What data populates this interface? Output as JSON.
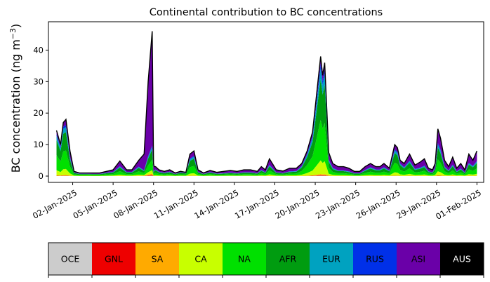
{
  "chart_data": {
    "type": "area",
    "title": "Continental contribution to BC concentrations",
    "ylabel": "BC concentration (ng m",
    "ylabel_unit_exponent": "−3",
    "ylabel_close": ")",
    "ylim": [
      -2,
      49
    ],
    "yticks": [
      0,
      10,
      20,
      30,
      40
    ],
    "xlim_days": [
      -0.8,
      31.5
    ],
    "xticks": [
      {
        "day": 1,
        "label": "02-Jan-2025"
      },
      {
        "day": 4,
        "label": "05-Jan-2025"
      },
      {
        "day": 7,
        "label": "08-Jan-2025"
      },
      {
        "day": 10,
        "label": "11-Jan-2025"
      },
      {
        "day": 13,
        "label": "14-Jan-2025"
      },
      {
        "day": 16,
        "label": "17-Jan-2025"
      },
      {
        "day": 19,
        "label": "20-Jan-2025"
      },
      {
        "day": 22,
        "label": "23-Jan-2025"
      },
      {
        "day": 25,
        "label": "26-Jan-2025"
      },
      {
        "day": 28,
        "label": "29-Jan-2025"
      },
      {
        "day": 31,
        "label": "01-Feb-2025"
      }
    ],
    "start_date": "01-Jan-2025",
    "series_order": [
      "OCE",
      "GNL",
      "SA",
      "CA",
      "NA",
      "AFR",
      "EUR",
      "RUS",
      "ASI",
      "AUS"
    ],
    "series_colors": [
      "#cccccc",
      "#ee0000",
      "#ffaa00",
      "#c8ff00",
      "#00e000",
      "#009c10",
      "#00a2c0",
      "#0030e8",
      "#6a00a8",
      "#000000"
    ],
    "days": [
      -0.2,
      0.1,
      0.3,
      0.5,
      0.8,
      1.1,
      1.5,
      2,
      2.5,
      3,
      3.5,
      4,
      4.5,
      5,
      5.4,
      5.9,
      6.3,
      6.6,
      6.9,
      7.0,
      7.05,
      7.15,
      7.4,
      7.8,
      8.2,
      8.6,
      9.0,
      9.4,
      9.7,
      10.0,
      10.3,
      10.7,
      11.2,
      11.7,
      12.2,
      12.7,
      13.2,
      13.7,
      14.2,
      14.7,
      15.0,
      15.3,
      15.6,
      16.1,
      16.6,
      17.1,
      17.6,
      18.0,
      18.4,
      18.8,
      19.1,
      19.4,
      19.55,
      19.7,
      19.85,
      20.0,
      20.3,
      20.7,
      21.1,
      21.5,
      21.9,
      22.3,
      22.7,
      23.1,
      23.5,
      23.8,
      24.1,
      24.5,
      24.9,
      25.1,
      25.3,
      25.6,
      26.0,
      26.4,
      26.8,
      27.1,
      27.4,
      27.7,
      27.9,
      28.1,
      28.3,
      28.6,
      28.9,
      29.2,
      29.5,
      29.8,
      30.1,
      30.4,
      30.7,
      31.0
    ],
    "totals": [
      14.5,
      10,
      17,
      18,
      8,
      1.5,
      1,
      1,
      1,
      1,
      1.5,
      2,
      4.8,
      2,
      2,
      5,
      7,
      30,
      46,
      4,
      3,
      3,
      2,
      1.5,
      2,
      1,
      1.5,
      1.2,
      7,
      8,
      2,
      1,
      1.8,
      1.2,
      1.5,
      1.8,
      1.5,
      2,
      2,
      1.5,
      3,
      2,
      5.5,
      2,
      1.6,
      2.5,
      2.5,
      4,
      8,
      14,
      26,
      38,
      32,
      36,
      22,
      7.5,
      4,
      3,
      3,
      2.5,
      1.5,
      1.5,
      3,
      4,
      3,
      3,
      4,
      2.5,
      10,
      9,
      5,
      4,
      7,
      3.5,
      4.5,
      5.5,
      2.5,
      2,
      4,
      15,
      12,
      5,
      3,
      6,
      2.5,
      4,
      2,
      7,
      5,
      8
    ],
    "asi_frac": [
      0.08,
      0.08,
      0.08,
      0.1,
      0.25,
      0.25,
      0.25,
      0.25,
      0.3,
      0.3,
      0.3,
      0.35,
      0.35,
      0.35,
      0.35,
      0.4,
      0.75,
      0.8,
      0.8,
      0.7,
      0.4,
      0.3,
      0.3,
      0.3,
      0.3,
      0.3,
      0.2,
      0.2,
      0.2,
      0.2,
      0.3,
      0.3,
      0.3,
      0.35,
      0.4,
      0.4,
      0.4,
      0.4,
      0.4,
      0.4,
      0.35,
      0.4,
      0.35,
      0.4,
      0.4,
      0.4,
      0.35,
      0.2,
      0.12,
      0.1,
      0.08,
      0.06,
      0.06,
      0.06,
      0.1,
      0.3,
      0.35,
      0.4,
      0.4,
      0.4,
      0.4,
      0.4,
      0.35,
      0.3,
      0.3,
      0.3,
      0.3,
      0.3,
      0.15,
      0.15,
      0.2,
      0.3,
      0.3,
      0.35,
      0.4,
      0.4,
      0.4,
      0.4,
      0.35,
      0.3,
      0.3,
      0.4,
      0.4,
      0.4,
      0.4,
      0.4,
      0.45,
      0.4,
      0.35,
      0.4
    ],
    "legend_labels": [
      "OCE",
      "GNL",
      "SA",
      "CA",
      "NA",
      "AFR",
      "EUR",
      "RUS",
      "ASI",
      "AUS"
    ],
    "legend_text_colors": [
      "#000000",
      "#000000",
      "#000000",
      "#000000",
      "#000000",
      "#000000",
      "#000000",
      "#000000",
      "#000000",
      "#ffffff"
    ]
  }
}
